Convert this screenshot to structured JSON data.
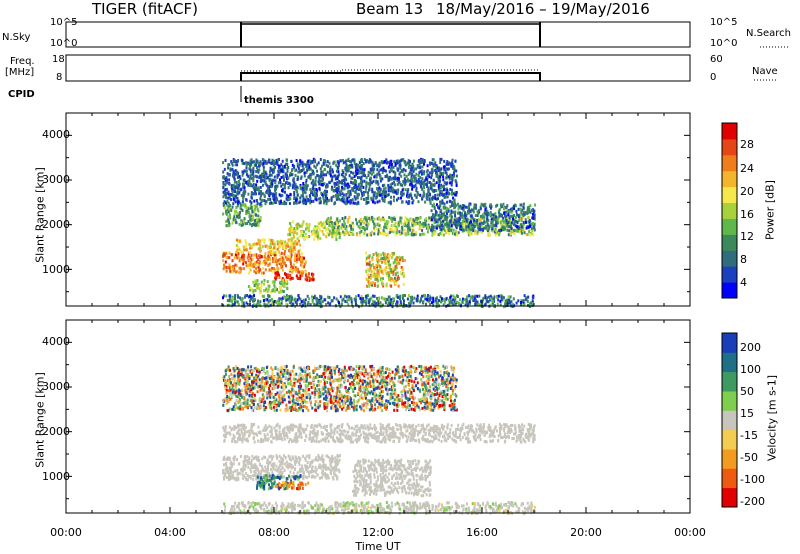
{
  "header": {
    "radar_title": "TIGER (fitACF)",
    "beam_label": "Beam 13",
    "date_range": "18/May/2016 – 19/May/2016"
  },
  "summary_panels": {
    "nsky": {
      "label": "N.Sky",
      "ticks_left": [
        "10^5",
        "10^0"
      ],
      "ticks_right": [
        "10^5",
        "10^0"
      ],
      "right_label": "N.Search"
    },
    "freq": {
      "label_line1": "Freq.",
      "label_line2": "[MHz]",
      "ticks_left": [
        "18",
        "8"
      ],
      "ticks_right": [
        "60",
        "0"
      ],
      "right_label": "Nave"
    },
    "cpid": {
      "label": "CPID",
      "program": "themis 3300"
    }
  },
  "chart_data": [
    {
      "type": "heatmap",
      "name": "power",
      "xlabel": "",
      "ylabel": "Slant Range [km]",
      "xlim": [
        0,
        24
      ],
      "ylim": [
        180,
        4500
      ],
      "y_ticks": [
        "4000",
        "3000",
        "2000",
        "1000"
      ],
      "colorbar": {
        "label": "Power [dB]",
        "ticks": [
          "28",
          "24",
          "20",
          "16",
          "12",
          "8",
          "4"
        ],
        "range": [
          0,
          30
        ],
        "colors": [
          "#0000ff",
          "#1a3fbf",
          "#2e6c7e",
          "#3c8a5a",
          "#5fb84a",
          "#a8d23c",
          "#f5e84a",
          "#f3b52b",
          "#ee7d1a",
          "#e64516",
          "#e00000"
        ]
      },
      "scatter_bands": [
        {
          "x": [
            6.0,
            9.2
          ],
          "y": [
            950,
            1400
          ],
          "v": [
            18,
            28
          ]
        },
        {
          "x": [
            6.5,
            9.0
          ],
          "y": [
            1400,
            1700
          ],
          "v": [
            15,
            24
          ]
        },
        {
          "x": [
            8.0,
            9.5
          ],
          "y": [
            780,
            950
          ],
          "v": [
            24,
            30
          ]
        },
        {
          "x": [
            7.0,
            8.5
          ],
          "y": [
            500,
            800
          ],
          "v": [
            10,
            18
          ]
        },
        {
          "x": [
            6.0,
            7.5
          ],
          "y": [
            2000,
            2500
          ],
          "v": [
            6,
            16
          ]
        },
        {
          "x": [
            8.5,
            10.5
          ],
          "y": [
            1700,
            2100
          ],
          "v": [
            12,
            20
          ]
        },
        {
          "x": [
            10.0,
            18.0
          ],
          "y": [
            1800,
            2200
          ],
          "v": [
            6,
            20
          ]
        },
        {
          "x": [
            14.0,
            18.0
          ],
          "y": [
            1900,
            2500
          ],
          "v": [
            2,
            12
          ]
        },
        {
          "x": [
            11.5,
            13.0
          ],
          "y": [
            650,
            1400
          ],
          "v": [
            10,
            26
          ]
        },
        {
          "x": [
            6.0,
            18.0
          ],
          "y": [
            200,
            450
          ],
          "v": [
            2,
            14
          ]
        },
        {
          "x": [
            6.0,
            15.0
          ],
          "y": [
            2500,
            3500
          ],
          "v": [
            2,
            10
          ]
        }
      ]
    },
    {
      "type": "heatmap",
      "name": "velocity",
      "xlabel": "Time UT",
      "ylabel": "Slant Range [km]",
      "xlim": [
        0,
        24
      ],
      "ylim": [
        180,
        4500
      ],
      "x_ticks": [
        "00:00",
        "04:00",
        "08:00",
        "12:00",
        "16:00",
        "20:00",
        "00:00"
      ],
      "y_ticks": [
        "4000",
        "3000",
        "2000",
        "1000"
      ],
      "colorbar": {
        "label": "Velocity [m s-1]",
        "ticks": [
          "200",
          "100",
          "50",
          "15",
          "-15",
          "-50",
          "-100",
          "-200"
        ],
        "range": [
          -250,
          250
        ],
        "colors": [
          "#e00000",
          "#ee5a10",
          "#f39a20",
          "#f5cc52",
          "#c8c6bc",
          "#7fcf4e",
          "#3d9a60",
          "#1e6f88",
          "#1a3db8"
        ]
      },
      "scatter_bands": [
        {
          "x": [
            6.0,
            10.5
          ],
          "y": [
            950,
            1500
          ],
          "v": [
            -10,
            10
          ]
        },
        {
          "x": [
            7.3,
            9.0
          ],
          "y": [
            750,
            1050
          ],
          "v": [
            60,
            220
          ]
        },
        {
          "x": [
            8.0,
            9.3
          ],
          "y": [
            750,
            900
          ],
          "v": [
            -200,
            -60
          ]
        },
        {
          "x": [
            6.0,
            18.0
          ],
          "y": [
            1800,
            2200
          ],
          "v": [
            -20,
            20
          ]
        },
        {
          "x": [
            11.0,
            14.0
          ],
          "y": [
            600,
            1400
          ],
          "v": [
            -15,
            15
          ]
        },
        {
          "x": [
            6.0,
            18.0
          ],
          "y": [
            200,
            450
          ],
          "v": [
            -30,
            40
          ]
        },
        {
          "x": [
            6.0,
            15.0
          ],
          "y": [
            2500,
            3500
          ],
          "v": [
            -250,
            250
          ]
        }
      ]
    }
  ]
}
